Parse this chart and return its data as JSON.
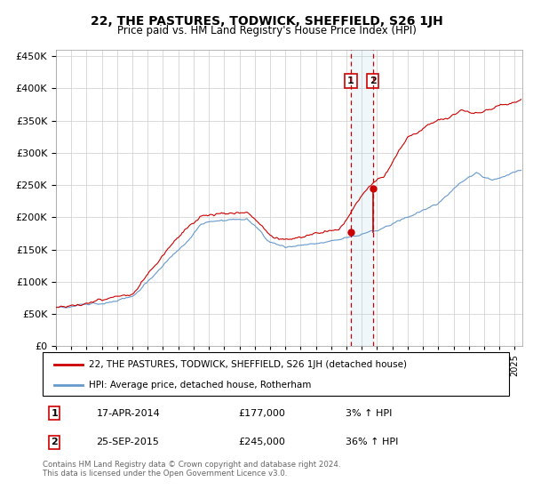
{
  "title": "22, THE PASTURES, TODWICK, SHEFFIELD, S26 1JH",
  "subtitle": "Price paid vs. HM Land Registry's House Price Index (HPI)",
  "legend_line1": "22, THE PASTURES, TODWICK, SHEFFIELD, S26 1JH (detached house)",
  "legend_line2": "HPI: Average price, detached house, Rotherham",
  "annotation1_date": "17-APR-2014",
  "annotation1_price": "£177,000",
  "annotation1_pct": "3% ↑ HPI",
  "annotation2_date": "25-SEP-2015",
  "annotation2_price": "£245,000",
  "annotation2_pct": "36% ↑ HPI",
  "footnote": "Contains HM Land Registry data © Crown copyright and database right 2024.\nThis data is licensed under the Open Government Licence v3.0.",
  "red_color": "#cc0000",
  "blue_color": "#6699cc",
  "annotation_box_color": "#cc0000",
  "vline1_x": 2014.29,
  "vline2_x": 2015.73,
  "point1_y": 177000,
  "point2_y": 245000,
  "ylim": [
    0,
    460000
  ],
  "xlim_start": 1995.0,
  "xlim_end": 2025.5,
  "title_fontsize": 10,
  "subtitle_fontsize": 8.5
}
